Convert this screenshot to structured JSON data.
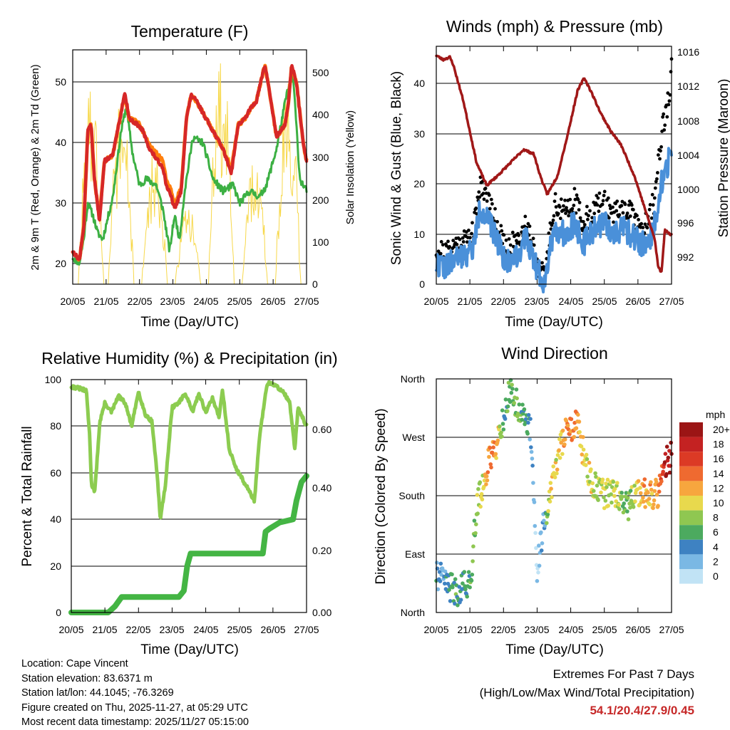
{
  "colors": {
    "temp_2m": "#d62728",
    "temp_9m": "#ff7f0e",
    "dewpoint": "#3cb043",
    "solar": "#f7d84a",
    "wind": "#4a90d9",
    "gust": "#000000",
    "pressure": "#a01818",
    "rh": "#8ccc50",
    "precip": "#44b544",
    "extremes": "#c62828"
  },
  "chart_data": [
    {
      "id": "temperature",
      "type": "line",
      "title": "Temperature (F)",
      "xlabel": "Time (Day/UTC)",
      "ylabel": "2m & 9m T (Red, Orange) & 2m Td (Green)",
      "y2label": "Solar Insolation (Yellow)",
      "xticks": [
        "20/05",
        "21/05",
        "22/05",
        "23/05",
        "24/05",
        "25/05",
        "26/05",
        "27/05"
      ],
      "xlim": [
        0,
        7
      ],
      "ylim": [
        16.5,
        55.5
      ],
      "yticks": [
        20,
        30,
        40,
        50
      ],
      "y2lim": [
        0,
        530
      ],
      "y2ticks": [
        0,
        100,
        200,
        300,
        400,
        500
      ],
      "series": [
        {
          "name": "2m T",
          "color_key": "temp_2m",
          "x": [
            0,
            0.2,
            0.33,
            0.45,
            0.55,
            0.65,
            0.8,
            0.95,
            1.2,
            1.45,
            1.55,
            1.7,
            1.95,
            2.1,
            2.3,
            2.55,
            2.7,
            2.8,
            2.95,
            3.05,
            3.25,
            3.4,
            3.55,
            3.7,
            4.0,
            4.3,
            4.5,
            4.75,
            4.95,
            5.15,
            5.35,
            5.5,
            5.75,
            5.85,
            6.1,
            6.35,
            6.45,
            6.55,
            6.7,
            6.9,
            7.0
          ],
          "values": [
            22,
            20.5,
            26,
            42,
            43,
            34,
            27,
            37,
            38,
            45,
            48.5,
            44,
            43,
            42,
            39,
            37,
            36,
            33,
            31,
            29,
            32,
            44,
            48,
            47,
            44,
            41,
            39,
            35,
            43,
            44,
            46,
            47,
            53,
            50,
            41,
            43,
            46,
            53,
            50,
            40,
            37
          ]
        },
        {
          "name": "9m T",
          "color_key": "temp_9m",
          "x": [
            0,
            0.2,
            0.33,
            0.45,
            0.55,
            0.65,
            0.8,
            0.95,
            1.2,
            1.45,
            1.55,
            1.7,
            1.95,
            2.1,
            2.3,
            2.55,
            2.7,
            2.8,
            2.95,
            3.05,
            3.25,
            3.4,
            3.55,
            3.7,
            4.0,
            4.3,
            4.5,
            4.75,
            4.95,
            5.15,
            5.35,
            5.5,
            5.75,
            5.85,
            6.1,
            6.35,
            6.45,
            6.55,
            6.7,
            6.9,
            7.0
          ],
          "values": [
            22,
            20.5,
            26,
            42,
            43,
            34,
            27.5,
            37,
            38,
            45,
            48,
            44,
            43.5,
            42,
            39.5,
            38,
            37,
            34,
            32,
            30,
            32.5,
            44,
            48,
            47,
            44,
            41,
            39,
            35.5,
            43,
            44,
            46,
            47,
            53,
            50,
            41,
            43,
            46,
            53,
            50,
            40,
            37
          ]
        },
        {
          "name": "2m Td",
          "color_key": "dewpoint",
          "x": [
            0,
            0.2,
            0.33,
            0.45,
            0.6,
            0.75,
            0.9,
            1.2,
            1.45,
            1.6,
            1.8,
            2.0,
            2.2,
            2.5,
            2.7,
            2.9,
            3.05,
            3.2,
            3.35,
            3.6,
            3.9,
            4.2,
            4.5,
            4.8,
            5.0,
            5.3,
            5.6,
            5.8,
            6.1,
            6.4,
            6.6,
            6.8,
            7.0
          ],
          "values": [
            21,
            20,
            24,
            30,
            28,
            25,
            24,
            31,
            42,
            46,
            38,
            33,
            34,
            33,
            29,
            22,
            28,
            24,
            32,
            41,
            40,
            34,
            32,
            33,
            30,
            32,
            31,
            33,
            39,
            48,
            51,
            34,
            32
          ]
        },
        {
          "name": "Solar Insolation",
          "color_key": "solar",
          "axis": "y2",
          "peaks": [
            [
              0.55,
              440
            ],
            [
              1.45,
              420
            ],
            [
              2.45,
              310
            ],
            [
              3.45,
              180
            ],
            [
              4.45,
              530
            ],
            [
              5.45,
              300
            ],
            [
              6.45,
              470
            ]
          ]
        }
      ]
    },
    {
      "id": "winds",
      "type": "scatter",
      "title": "Winds (mph) & Pressure (mb)",
      "xlabel": "Time (Day/UTC)",
      "ylabel": "Sonic Wind & Gust (Blue, Black)",
      "y2label": "Station Pressure (Maroon)",
      "xticks": [
        "20/05",
        "21/05",
        "22/05",
        "23/05",
        "24/05",
        "25/05",
        "26/05",
        "27/05"
      ],
      "xlim": [
        0,
        7
      ],
      "ylim": [
        0,
        47
      ],
      "yticks": [
        0,
        10,
        20,
        30,
        40
      ],
      "y2lim": [
        989.5,
        1016
      ],
      "y2ticks": [
        992,
        996,
        1000,
        1004,
        1008,
        1012,
        1016
      ],
      "series": [
        {
          "name": "Gust",
          "color_key": "gust",
          "x": [
            0,
            0.3,
            0.6,
            0.9,
            1.1,
            1.3,
            1.5,
            1.8,
            2.1,
            2.4,
            2.7,
            3.0,
            3.2,
            3.5,
            3.8,
            4.1,
            4.4,
            4.7,
            5.0,
            5.3,
            5.6,
            5.9,
            6.1,
            6.3,
            6.5,
            6.7,
            6.9,
            7.0
          ],
          "values": [
            7,
            6,
            8,
            9,
            10,
            20,
            18,
            12,
            6,
            9,
            12,
            5,
            1,
            16,
            14,
            17,
            12,
            15,
            16,
            14,
            15,
            13,
            11,
            12,
            17,
            30,
            36,
            42
          ]
        },
        {
          "name": "Wind",
          "color_key": "wind",
          "x": [
            0,
            0.3,
            0.6,
            0.9,
            1.1,
            1.3,
            1.5,
            1.8,
            2.1,
            2.4,
            2.7,
            3.0,
            3.2,
            3.5,
            3.8,
            4.1,
            4.4,
            4.7,
            5.0,
            5.3,
            5.6,
            5.9,
            6.1,
            6.3,
            6.5,
            6.7,
            6.9,
            7.0
          ],
          "values": [
            4,
            3.5,
            5,
            6,
            7,
            15,
            13,
            9,
            4,
            6,
            9,
            3,
            0.5,
            11,
            10,
            12,
            8,
            11,
            12,
            10,
            11,
            9,
            8,
            8,
            12,
            20,
            24,
            27
          ]
        },
        {
          "name": "Pressure",
          "color_key": "pressure",
          "axis": "y2",
          "x": [
            0,
            0.2,
            0.4,
            0.5,
            0.8,
            1.0,
            1.2,
            1.5,
            1.8,
            2.2,
            2.6,
            2.9,
            3.1,
            3.3,
            3.6,
            3.9,
            4.2,
            4.4,
            4.6,
            4.9,
            5.2,
            5.5,
            5.9,
            6.2,
            6.5,
            6.6,
            6.7,
            6.8,
            7.0
          ],
          "values": [
            1015,
            1014.5,
            1014.8,
            1014,
            1010,
            1006.5,
            1003,
            1000.5,
            1001.5,
            1003,
            1004.5,
            1004,
            1001.5,
            999.5,
            1001.5,
            1006,
            1011,
            1012.5,
            1011,
            1008.5,
            1006.5,
            1005,
            1001.5,
            998,
            994.5,
            991.5,
            990.8,
            995.5,
            995
          ]
        }
      ]
    },
    {
      "id": "humidity",
      "type": "line",
      "title": "Relative Humidity (%) & Precipitation (in)",
      "xlabel": "Time (Day/UTC)",
      "ylabel": "Percent & Total Rainfall",
      "xticks": [
        "20/05",
        "21/05",
        "22/05",
        "23/05",
        "24/05",
        "25/05",
        "26/05",
        "27/05"
      ],
      "xlim": [
        0,
        7
      ],
      "ylim": [
        0,
        100
      ],
      "yticks": [
        0,
        20,
        40,
        60,
        80,
        100
      ],
      "y2lim": [
        0,
        0.75
      ],
      "y2ticks": [
        "0.00",
        "0.20",
        "0.40",
        "0.60"
      ],
      "series": [
        {
          "name": "RH",
          "color_key": "rh",
          "x": [
            0,
            0.3,
            0.45,
            0.55,
            0.6,
            0.7,
            0.85,
            1.0,
            1.2,
            1.4,
            1.6,
            1.8,
            2.0,
            2.2,
            2.4,
            2.55,
            2.65,
            2.8,
            3.0,
            3.2,
            3.4,
            3.6,
            3.8,
            4.0,
            4.2,
            4.4,
            4.5,
            4.7,
            4.9,
            5.1,
            5.3,
            5.45,
            5.6,
            5.8,
            5.9,
            6.1,
            6.3,
            6.5,
            6.65,
            6.75,
            6.85,
            7.0
          ],
          "values": [
            97,
            96,
            95,
            75,
            55,
            52,
            82,
            90,
            86,
            93,
            90,
            80,
            95,
            85,
            82,
            60,
            40,
            55,
            88,
            90,
            94,
            86,
            94,
            86,
            92,
            84,
            96,
            70,
            62,
            57,
            52,
            48,
            75,
            96,
            99,
            97,
            95,
            90,
            70,
            88,
            85,
            80
          ]
        },
        {
          "name": "Total Rainfall",
          "color_key": "precip",
          "axis": "y2",
          "x": [
            0,
            1.1,
            1.3,
            1.5,
            1.7,
            2.0,
            3.2,
            3.35,
            3.45,
            3.55,
            3.7,
            4.0,
            5.0,
            5.7,
            5.78,
            5.9,
            6.2,
            6.6,
            6.7,
            6.85,
            7.0
          ],
          "values": [
            0,
            0,
            0.02,
            0.05,
            0.05,
            0.05,
            0.05,
            0.07,
            0.15,
            0.19,
            0.19,
            0.19,
            0.19,
            0.19,
            0.26,
            0.27,
            0.29,
            0.3,
            0.36,
            0.42,
            0.44
          ]
        }
      ]
    },
    {
      "id": "direction",
      "type": "scatter",
      "title": "Wind Direction",
      "xlabel": "Time (Day/UTC)",
      "ylabel": "Direction (Colored By Speed)",
      "xticks": [
        "20/05",
        "21/05",
        "22/05",
        "23/05",
        "24/05",
        "25/05",
        "26/05",
        "27/05"
      ],
      "xlim": [
        0,
        7
      ],
      "ylim": [
        0,
        360
      ],
      "ytick_labels": [
        "North",
        "East",
        "South",
        "West",
        "North"
      ],
      "series": [
        {
          "name": "Direction",
          "x": [
            0,
            0.2,
            0.4,
            0.6,
            0.8,
            1.0,
            1.2,
            1.4,
            1.6,
            1.8,
            2.0,
            2.2,
            2.4,
            2.6,
            2.8,
            3.0,
            3.2,
            3.4,
            3.6,
            3.8,
            4.0,
            4.2,
            4.4,
            4.6,
            4.8,
            5.0,
            5.2,
            5.4,
            5.6,
            5.8,
            6.0,
            6.2,
            6.4,
            6.6,
            6.8,
            7.0
          ],
          "values": [
            60,
            50,
            40,
            30,
            45,
            40,
            160,
            200,
            240,
            260,
            300,
            345,
            320,
            300,
            280,
            70,
            140,
            180,
            240,
            275,
            280,
            290,
            240,
            200,
            190,
            180,
            185,
            180,
            160,
            170,
            180,
            185,
            180,
            185,
            230,
            240
          ],
          "speeds": [
            4,
            3,
            5,
            6,
            4,
            6,
            8,
            10,
            14,
            12,
            5,
            6,
            8,
            5,
            4,
            1,
            2,
            12,
            10,
            12,
            14,
            12,
            10,
            10,
            8,
            10,
            8,
            10,
            6,
            8,
            10,
            12,
            12,
            12,
            18,
            20
          ]
        }
      ],
      "colorbar": {
        "title": "mph",
        "labels": [
          "20+",
          "18",
          "16",
          "14",
          "12",
          "10",
          "8",
          "6",
          "4",
          "2",
          "0"
        ],
        "colors": [
          "#9b1515",
          "#c42222",
          "#dc3a25",
          "#ef6a30",
          "#f7a63e",
          "#e8d94d",
          "#8fc751",
          "#4caa5f",
          "#3e82c2",
          "#7ab8e4",
          "#c1e3f5"
        ]
      }
    }
  ],
  "info": {
    "location": "Location: Cape Vincent",
    "elevation": "Station elevation: 83.6371 m",
    "latlon": "Station lat/lon: 44.1045; -76.3269",
    "created": "Figure created on Thu, 2025-11-27, at 05:29 UTC",
    "latest": "Most recent data timestamp: 2025/11/27 05:15:00"
  },
  "extremes": {
    "title": "Extremes For Past 7 Days",
    "subtitle": "(High/Low/Max Wind/Total Precipitation)",
    "values": "54.1/20.4/27.9/0.45"
  }
}
